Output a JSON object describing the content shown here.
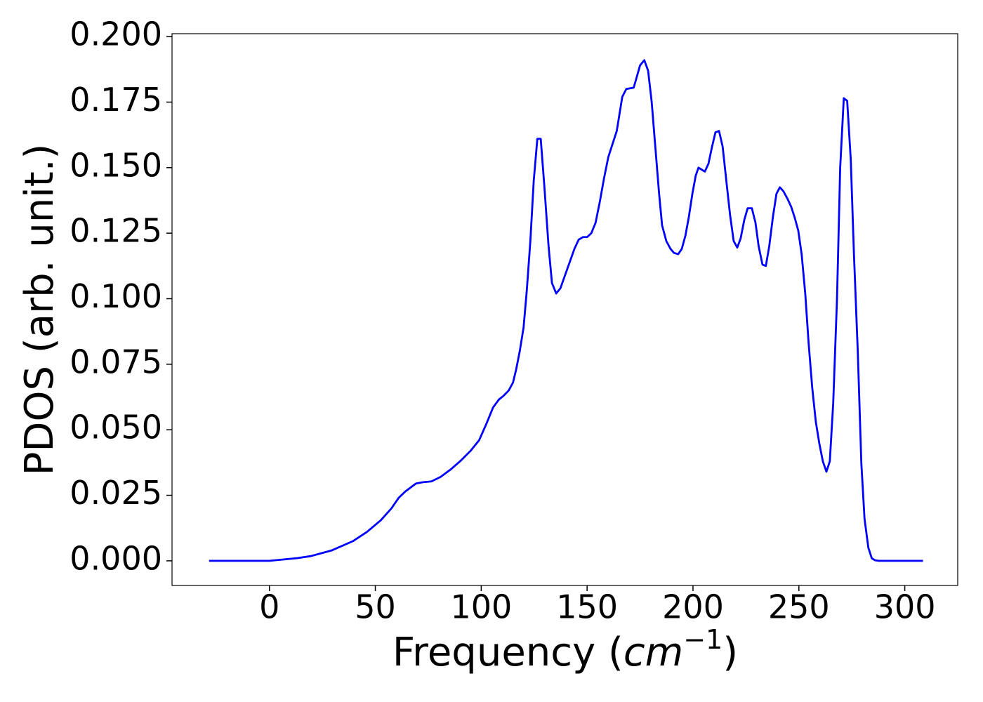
{
  "chart_data": {
    "type": "line",
    "xlabel": [
      "Frequency (",
      "cm",
      "−1",
      ")"
    ],
    "ylabel": "PDOS (arb. unit.)",
    "color": "#0000ff",
    "xlim": [
      -46,
      325
    ],
    "ylim": [
      -0.0094,
      0.2011
    ],
    "xticks": [
      0,
      50,
      100,
      150,
      200,
      250,
      300
    ],
    "yticks": [
      {
        "value": 0,
        "label": "0.000"
      },
      {
        "value": 0.025,
        "label": "0.025"
      },
      {
        "value": 0.05,
        "label": "0.050"
      },
      {
        "value": 0.075,
        "label": "0.075"
      },
      {
        "value": 0.1,
        "label": "0.100"
      },
      {
        "value": 0.125,
        "label": "0.125"
      },
      {
        "value": 0.15,
        "label": "0.150"
      },
      {
        "value": 0.175,
        "label": "0.175"
      },
      {
        "value": 0.2,
        "label": "0.200"
      }
    ],
    "x": [
      -28.5,
      -10,
      0,
      13,
      19.5,
      29.5,
      39.4,
      46,
      52.6,
      57.6,
      61,
      64.2,
      69.2,
      72.5,
      76.5,
      80.8,
      85.8,
      90.7,
      95,
      99,
      102.3,
      105.6,
      108.3,
      110.6,
      113,
      115,
      116.5,
      118.2,
      120,
      121.5,
      123.2,
      124.8,
      126.5,
      128.1,
      129.8,
      131.8,
      133.4,
      135.4,
      137.4,
      144,
      146,
      148,
      150,
      152,
      154,
      156,
      158,
      160,
      162,
      164,
      166.6,
      168.5,
      172,
      175,
      177,
      178.8,
      180.5,
      184,
      185.4,
      187.4,
      189.4,
      191,
      193,
      194.7,
      196.4,
      198,
      199.7,
      201.3,
      202.6,
      205.6,
      207.3,
      209,
      210.6,
      212.3,
      214,
      215.6,
      217.5,
      219.2,
      220.9,
      222.5,
      224.2,
      225.8,
      227.8,
      229.5,
      231,
      232.8,
      234.4,
      236,
      237.7,
      239.4,
      241,
      242.7,
      244.7,
      246.4,
      248,
      249.7,
      251.3,
      253,
      254.6,
      256.3,
      258,
      259.6,
      261.3,
      263,
      264.6,
      266.2,
      268,
      269.5,
      271.2,
      272.8,
      274.5,
      276,
      277.8,
      279.5,
      281,
      282.8,
      284.4,
      286,
      287.7,
      308.6
    ],
    "values": [
      0,
      0,
      0,
      0.001,
      0.0018,
      0.004,
      0.0075,
      0.011,
      0.0155,
      0.02,
      0.024,
      0.0265,
      0.0295,
      0.03,
      0.0303,
      0.032,
      0.035,
      0.0385,
      0.042,
      0.046,
      0.052,
      0.0585,
      0.0615,
      0.063,
      0.065,
      0.068,
      0.073,
      0.08,
      0.089,
      0.103,
      0.122,
      0.145,
      0.161,
      0.161,
      0.143,
      0.12,
      0.106,
      0.102,
      0.104,
      0.119,
      0.1225,
      0.1235,
      0.1235,
      0.125,
      0.129,
      0.137,
      0.146,
      0.154,
      0.159,
      0.164,
      0.177,
      0.18,
      0.1805,
      0.189,
      0.191,
      0.187,
      0.175,
      0.14,
      0.128,
      0.122,
      0.119,
      0.1175,
      0.117,
      0.119,
      0.124,
      0.131,
      0.14,
      0.147,
      0.15,
      0.1485,
      0.1515,
      0.158,
      0.1635,
      0.164,
      0.158,
      0.146,
      0.132,
      0.122,
      0.1195,
      0.123,
      0.13,
      0.1345,
      0.1345,
      0.129,
      0.12,
      0.113,
      0.1125,
      0.12,
      0.131,
      0.14,
      0.1425,
      0.141,
      0.138,
      0.135,
      0.131,
      0.126,
      0.117,
      0.102,
      0.083,
      0.066,
      0.053,
      0.045,
      0.038,
      0.034,
      0.038,
      0.06,
      0.1,
      0.15,
      0.1765,
      0.1755,
      0.153,
      0.117,
      0.08,
      0.037,
      0.016,
      0.005,
      0.001,
      0.0002,
      0,
      0
    ]
  }
}
